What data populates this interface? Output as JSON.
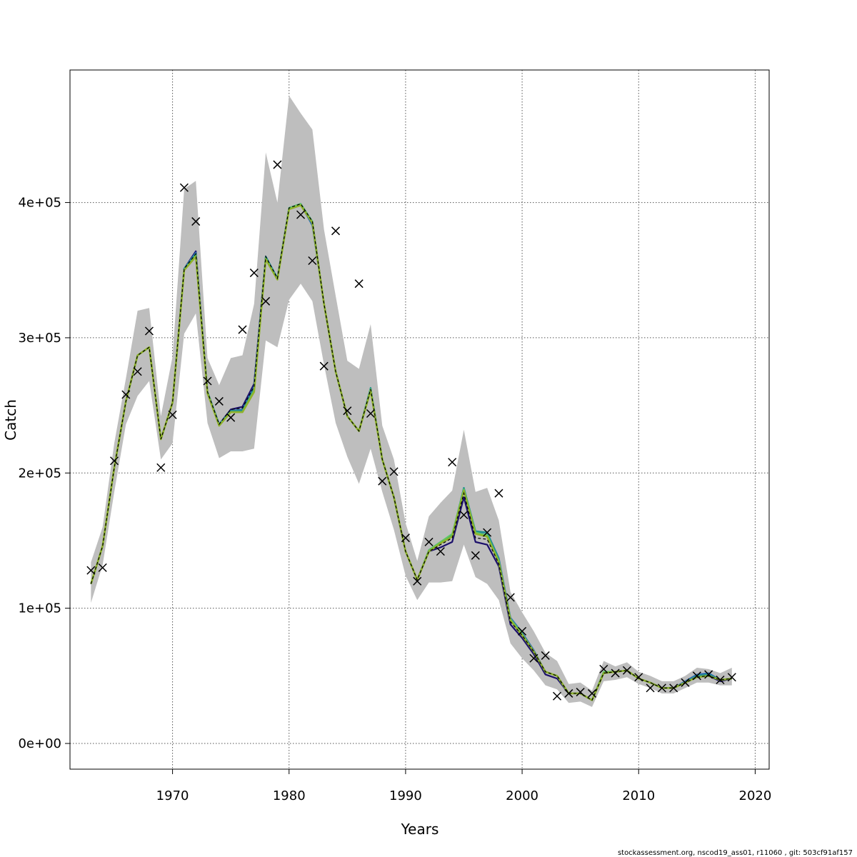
{
  "chart_data": {
    "type": "line",
    "title": "",
    "xlabel": "Years",
    "ylabel": "Catch",
    "xlim": [
      1961.2,
      2021.2
    ],
    "ylim": [
      -19000,
      498000
    ],
    "grid": true,
    "x_ticks": [
      1970,
      1980,
      1990,
      2000,
      2010,
      2020
    ],
    "x_tick_labels": [
      "1970",
      "1980",
      "1990",
      "2000",
      "2010",
      "2020"
    ],
    "y_ticks": [
      0,
      100000,
      200000,
      300000,
      400000
    ],
    "y_tick_labels": [
      "0e+00",
      "1e+05",
      "2e+05",
      "3e+05",
      "4e+05"
    ],
    "footer": "stockassessment.org, nscod19_ass01, r11060 , git: 503cf91af157",
    "colors": {
      "band": "#bebebe",
      "estimate": "#000000",
      "retro_lines": [
        "#1b0f6b",
        "#2c6db0",
        "#21918c",
        "#5ec962",
        "#8fb32a"
      ],
      "observed_marker": "#000000",
      "grid": "#555555"
    },
    "years": [
      1963,
      1964,
      1965,
      1966,
      1967,
      1968,
      1969,
      1970,
      1971,
      1972,
      1973,
      1974,
      1975,
      1976,
      1977,
      1978,
      1979,
      1980,
      1981,
      1982,
      1983,
      1984,
      1985,
      1986,
      1987,
      1988,
      1989,
      1990,
      1991,
      1992,
      1993,
      1994,
      1995,
      1996,
      1997,
      1998,
      1999,
      2000,
      2001,
      2002,
      2003,
      2004,
      2005,
      2006,
      2007,
      2008,
      2009,
      2010,
      2011,
      2012,
      2013,
      2014,
      2015,
      2016,
      2017,
      2018
    ],
    "series": [
      {
        "name": "Estimated catch",
        "values": [
          118000,
          146000,
          204000,
          253000,
          287000,
          293000,
          225000,
          252000,
          351000,
          362000,
          260000,
          236000,
          247000,
          248000,
          264000,
          360000,
          344000,
          396000,
          399000,
          386000,
          325000,
          275000,
          242000,
          231000,
          262000,
          210000,
          182000,
          142000,
          121000,
          142000,
          147000,
          152000,
          185000,
          152000,
          151000,
          133000,
          90000,
          80000,
          68000,
          53000,
          50000,
          37000,
          37000,
          32000,
          52000,
          53000,
          54000,
          48000,
          45000,
          41000,
          41000,
          45000,
          49000,
          50000,
          47000,
          48000
        ]
      },
      {
        "name": "Upper confidence bound",
        "values": [
          134000,
          160000,
          222000,
          270000,
          320000,
          322000,
          242000,
          286000,
          410000,
          416000,
          285000,
          265000,
          285000,
          287000,
          325000,
          437000,
          400000,
          479000,
          466000,
          454000,
          380000,
          331000,
          283000,
          277000,
          310000,
          235000,
          210000,
          163000,
          135000,
          168000,
          178000,
          187000,
          232000,
          186000,
          189000,
          165000,
          112000,
          97000,
          83000,
          67000,
          61000,
          44000,
          45000,
          39000,
          61000,
          57000,
          60000,
          53000,
          50000,
          46000,
          46000,
          50000,
          56000,
          55000,
          52000,
          56000
        ]
      },
      {
        "name": "Lower confidence bound",
        "values": [
          104000,
          132000,
          186000,
          236000,
          257000,
          268000,
          210000,
          222000,
          303000,
          318000,
          237000,
          211000,
          216000,
          216000,
          218000,
          298000,
          293000,
          328000,
          340000,
          327000,
          280000,
          237000,
          212000,
          192000,
          218000,
          186000,
          158000,
          124000,
          106000,
          119000,
          119000,
          120000,
          147000,
          123000,
          118000,
          106000,
          74000,
          63000,
          54000,
          43000,
          40000,
          30000,
          31000,
          27000,
          46000,
          47000,
          49000,
          44000,
          41000,
          37000,
          37000,
          41000,
          45000,
          45000,
          43000,
          43000
        ]
      }
    ],
    "retro_offsets": [
      [
        0,
        0,
        0,
        0,
        0,
        0,
        0,
        0,
        0,
        2000,
        0,
        0,
        0,
        1000,
        2000,
        0,
        0,
        0,
        0,
        0,
        0,
        0,
        0,
        0,
        0,
        0,
        0,
        0,
        0,
        0,
        -2000,
        -3000,
        -3000,
        -3000,
        -4000,
        -2000,
        -2000,
        -2000,
        -2000,
        -2000,
        -2000,
        0,
        0,
        0,
        0,
        0,
        0,
        0,
        0,
        0,
        0,
        0,
        0,
        0,
        -1000,
        0
      ],
      [
        0,
        0,
        0,
        0,
        0,
        0,
        0,
        0,
        0,
        1000,
        0,
        0,
        -1000,
        -1000,
        0,
        0,
        0,
        0,
        0,
        -3000,
        0,
        0,
        0,
        0,
        0,
        0,
        0,
        0,
        0,
        1000,
        2000,
        2000,
        4000,
        4000,
        5000,
        4000,
        3000,
        2000,
        1000,
        0,
        0,
        0,
        0,
        0,
        0,
        0,
        0,
        0,
        0,
        0,
        0,
        1000,
        2000,
        2000,
        0,
        0
      ],
      [
        0,
        0,
        0,
        0,
        0,
        0,
        0,
        0,
        0,
        0,
        0,
        0,
        -1000,
        -2000,
        -2000,
        0,
        0,
        0,
        0,
        0,
        0,
        0,
        0,
        0,
        1000,
        0,
        0,
        0,
        0,
        1000,
        2000,
        2000,
        4000,
        5000,
        5000,
        3000,
        2000,
        1000,
        0,
        0,
        0,
        0,
        0,
        0,
        1000,
        0,
        0,
        0,
        0,
        0,
        0,
        0,
        1000,
        1000,
        0,
        0
      ],
      [
        0,
        0,
        0,
        0,
        0,
        0,
        0,
        0,
        -1000,
        -1000,
        0,
        -1000,
        -2000,
        -3000,
        -3000,
        -1000,
        -1000,
        0,
        0,
        0,
        0,
        0,
        0,
        0,
        0,
        0,
        0,
        0,
        0,
        1000,
        2000,
        3000,
        3000,
        4000,
        3000,
        2000,
        2000,
        1000,
        0,
        0,
        0,
        0,
        0,
        0,
        1000,
        0,
        0,
        0,
        0,
        0,
        0,
        0,
        0,
        0,
        0,
        0
      ],
      [
        0,
        0,
        0,
        0,
        0,
        0,
        0,
        0,
        -1000,
        -2000,
        -1000,
        -1000,
        -2000,
        -3000,
        -4000,
        -2000,
        -1000,
        -1000,
        -1000,
        -1000,
        0,
        0,
        0,
        0,
        -1000,
        0,
        0,
        0,
        0,
        0,
        1000,
        1000,
        2000,
        3000,
        2000,
        1000,
        1000,
        0,
        0,
        0,
        0,
        0,
        0,
        0,
        0,
        0,
        0,
        0,
        0,
        0,
        0,
        0,
        0,
        0,
        0,
        0
      ]
    ],
    "observed": [
      {
        "x": 1963,
        "y": 128000
      },
      {
        "x": 1964,
        "y": 130000
      },
      {
        "x": 1965,
        "y": 209000
      },
      {
        "x": 1966,
        "y": 258000
      },
      {
        "x": 1967,
        "y": 275000
      },
      {
        "x": 1968,
        "y": 305000
      },
      {
        "x": 1969,
        "y": 204000
      },
      {
        "x": 1970,
        "y": 243000
      },
      {
        "x": 1971,
        "y": 411000
      },
      {
        "x": 1972,
        "y": 386000
      },
      {
        "x": 1973,
        "y": 268000
      },
      {
        "x": 1974,
        "y": 253000
      },
      {
        "x": 1975,
        "y": 241000
      },
      {
        "x": 1976,
        "y": 306000
      },
      {
        "x": 1977,
        "y": 348000
      },
      {
        "x": 1978,
        "y": 327000
      },
      {
        "x": 1979,
        "y": 428000
      },
      {
        "x": 1981,
        "y": 391000
      },
      {
        "x": 1982,
        "y": 357000
      },
      {
        "x": 1983,
        "y": 279000
      },
      {
        "x": 1984,
        "y": 379000
      },
      {
        "x": 1985,
        "y": 246000
      },
      {
        "x": 1986,
        "y": 340000
      },
      {
        "x": 1987,
        "y": 244000
      },
      {
        "x": 1988,
        "y": 194000
      },
      {
        "x": 1989,
        "y": 201000
      },
      {
        "x": 1990,
        "y": 152000
      },
      {
        "x": 1991,
        "y": 120000
      },
      {
        "x": 1992,
        "y": 149000
      },
      {
        "x": 1993,
        "y": 142000
      },
      {
        "x": 1994,
        "y": 208000
      },
      {
        "x": 1995,
        "y": 169000
      },
      {
        "x": 1996,
        "y": 139000
      },
      {
        "x": 1997,
        "y": 156000
      },
      {
        "x": 1998,
        "y": 185000
      },
      {
        "x": 1999,
        "y": 108000
      },
      {
        "x": 2000,
        "y": 83000
      },
      {
        "x": 2001,
        "y": 63000
      },
      {
        "x": 2002,
        "y": 65000
      },
      {
        "x": 2003,
        "y": 35000
      },
      {
        "x": 2004,
        "y": 37000
      },
      {
        "x": 2005,
        "y": 38000
      },
      {
        "x": 2006,
        "y": 37000
      },
      {
        "x": 2007,
        "y": 55000
      },
      {
        "x": 2008,
        "y": 52000
      },
      {
        "x": 2009,
        "y": 54000
      },
      {
        "x": 2010,
        "y": 49000
      },
      {
        "x": 2011,
        "y": 41000
      },
      {
        "x": 2012,
        "y": 41000
      },
      {
        "x": 2013,
        "y": 41000
      },
      {
        "x": 2014,
        "y": 45000
      },
      {
        "x": 2015,
        "y": 50000
      },
      {
        "x": 2016,
        "y": 51000
      },
      {
        "x": 2017,
        "y": 47000
      },
      {
        "x": 2018,
        "y": 49000
      }
    ]
  }
}
